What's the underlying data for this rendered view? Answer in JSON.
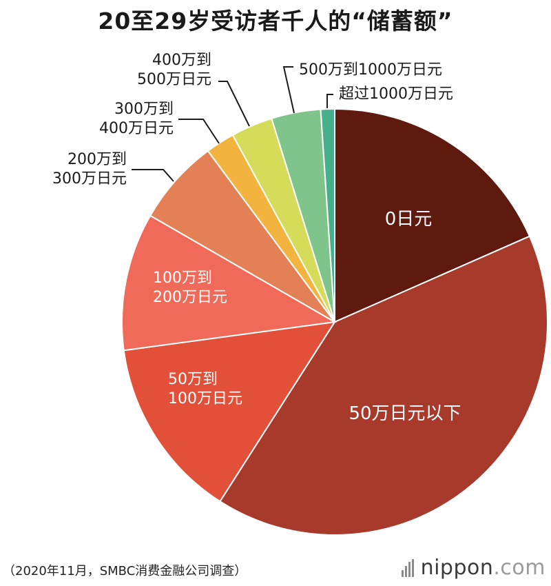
{
  "chart_data": {
    "type": "pie",
    "title": "20至29岁受访者千人的“储蓄额”",
    "categories": [
      "0日元",
      "50万日元以下",
      "50万到100万日元",
      "100万到200万日元",
      "200万到300万日元",
      "300万到400万日元",
      "400万到500万日元",
      "500万到1000万日元",
      "超过1000万日元"
    ],
    "label_lines": [
      [
        "0日元"
      ],
      [
        "50万日元以下"
      ],
      [
        "50万到",
        "100万日元"
      ],
      [
        "100万到",
        "200万日元"
      ],
      [
        "200万到",
        "300万日元"
      ],
      [
        "300万到",
        "400万日元"
      ],
      [
        "400万到",
        "500万日元"
      ],
      [
        "500万到1000万日元"
      ],
      [
        "超过1000万日元"
      ]
    ],
    "values": [
      19.2,
      42.4,
      14.4,
      10.9,
      6.8,
      2.3,
      3.3,
      3.9,
      1.1
    ],
    "colors": [
      "#5f1a10",
      "#a83a2c",
      "#e2503a",
      "#ef6a58",
      "#e48055",
      "#f2b43e",
      "#d5dc5a",
      "#7fc48b",
      "#45b08b"
    ],
    "legend": "none"
  },
  "footer": {
    "source": "（2020年11月，SMBC消费金融公司调查）",
    "logo_main": "nippon",
    "logo_dot": ".com"
  }
}
